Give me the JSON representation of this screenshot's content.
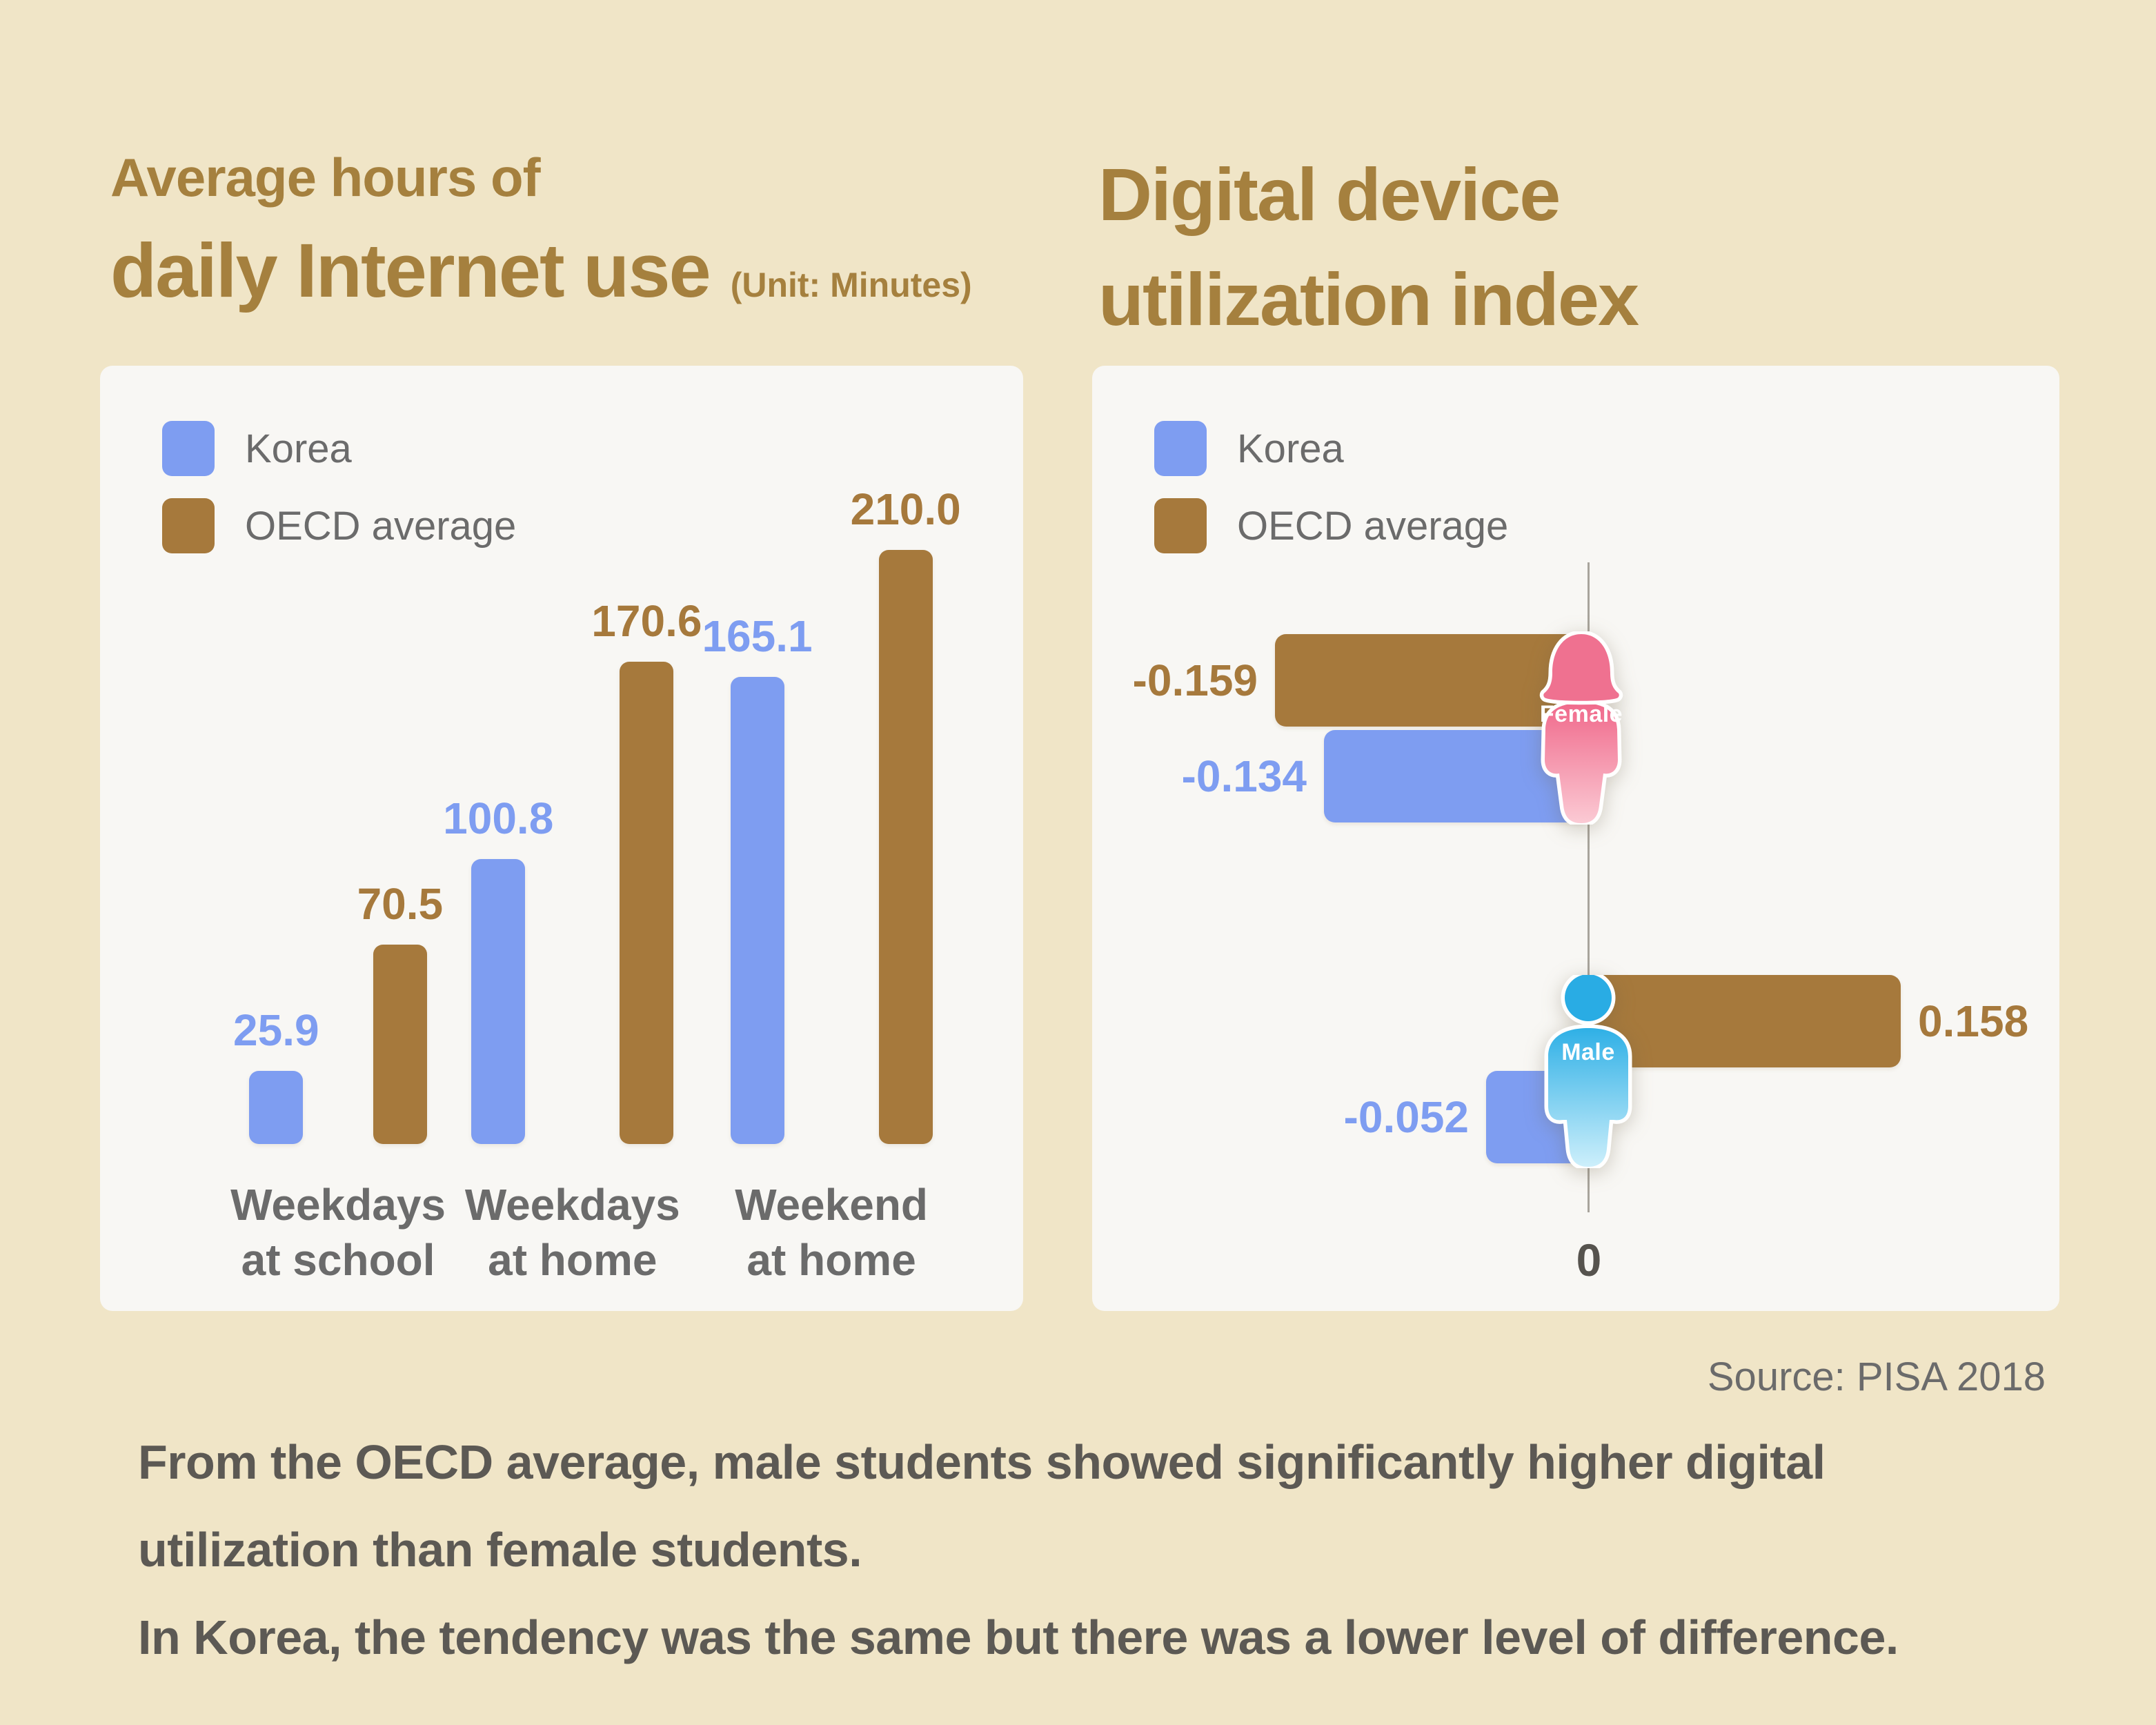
{
  "titles": {
    "left_line1": "Average hours of",
    "left_line2": "daily Internet use",
    "left_unit": "(Unit: Minutes)",
    "right_line1": "Digital device",
    "right_line2": "utilization index"
  },
  "legend": {
    "korea_label": "Korea",
    "oecd_label": "OECD average"
  },
  "colors": {
    "korea": "#7E9DF1",
    "oecd": "#A6793C",
    "title_brown": "#A5803E",
    "background": "#F0E5C7",
    "panel": "#F8F7F4",
    "text_gray": "#6B6B6B",
    "female_pink": "#EF7190",
    "male_blue": "#29ACE4"
  },
  "chart_data": [
    {
      "type": "bar",
      "title": "Average hours of daily Internet use",
      "unit": "Minutes",
      "ylim": [
        0,
        210
      ],
      "grid": false,
      "legend_position": "top-left",
      "categories": [
        [
          "Weekdays",
          "at school"
        ],
        [
          "Weekdays",
          "at home"
        ],
        [
          "Weekend",
          "at home"
        ]
      ],
      "series": [
        {
          "name": "Korea",
          "color": "#7E9DF1",
          "values": [
            25.9,
            100.8,
            165.1
          ],
          "labels": [
            "25.9",
            "100.8",
            "165.1"
          ]
        },
        {
          "name": "OECD average",
          "color": "#A6793C",
          "values": [
            70.5,
            170.6,
            210.0
          ],
          "labels": [
            "70.5",
            "170.6",
            "210.0"
          ]
        }
      ]
    },
    {
      "type": "bar",
      "orientation": "horizontal",
      "title": "Digital device utilization index",
      "axis": "vertical-zero-line",
      "zero_label": "0",
      "xlim": [
        -0.25,
        0.25
      ],
      "rows": [
        {
          "category": "Female",
          "oecd": -0.159,
          "oecd_label": "-0.159",
          "korea": -0.134,
          "korea_label": "-0.134"
        },
        {
          "category": "Male",
          "oecd": 0.158,
          "oecd_label": "0.158",
          "korea": -0.052,
          "korea_label": "-0.052"
        }
      ]
    }
  ],
  "source": "Source: PISA 2018",
  "caption": {
    "line1": "From the OECD average, male students showed significantly higher digital",
    "line2": "utilization than female students.",
    "line3": "In Korea, the tendency was the same but there was a lower level of difference."
  }
}
